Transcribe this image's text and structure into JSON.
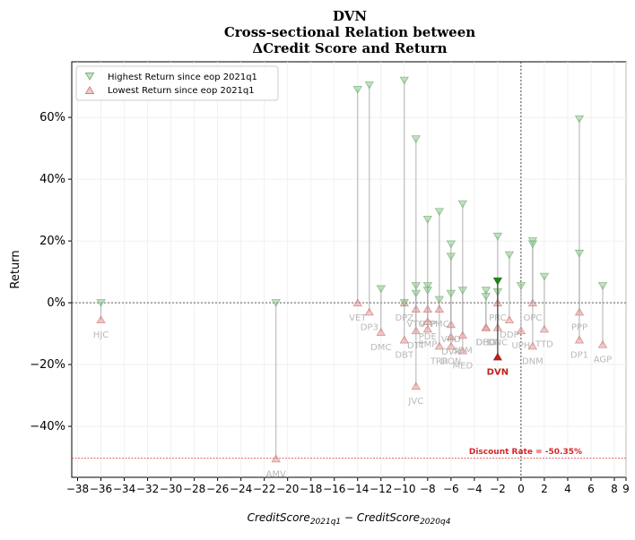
{
  "chart_data": {
    "type": "scatter",
    "title": [
      "DVN",
      "Cross-sectional Relation between",
      "ΔCredit Score and Return"
    ],
    "xlabel": "CreditScore_{2021q1} − CreditScore_{2020q4}",
    "ylabel": "Return",
    "xlim": [
      -38.5,
      9
    ],
    "ylim": [
      -0.565,
      0.78
    ],
    "x_ticks": [
      -38,
      -36,
      -34,
      -32,
      -30,
      -28,
      -26,
      -24,
      -22,
      -20,
      -18,
      -16,
      -14,
      -12,
      -10,
      -8,
      -6,
      -4,
      -2,
      0,
      2,
      4,
      6,
      8,
      9
    ],
    "x_tick_labels": [
      "−38",
      "−36",
      "−34",
      "−32",
      "−30",
      "−28",
      "−26",
      "−24",
      "−22",
      "−20",
      "−18",
      "−16",
      "−14",
      "−12",
      "−10",
      "−8",
      "−6",
      "−4",
      "−2",
      "0",
      "2",
      "4",
      "6",
      "8",
      "9"
    ],
    "y_ticks": [
      -0.4,
      -0.2,
      0,
      0.2,
      0.4,
      0.6
    ],
    "y_tick_labels": [
      "−40%",
      "−20%",
      "0%",
      "20%",
      "40%",
      "60%"
    ],
    "grid": true,
    "legend": {
      "position": "top-left",
      "entries": [
        "Highest Return since eop 2021q1",
        "Lowest Return since eop 2021q1"
      ]
    },
    "colors": {
      "high": "#8fc98f",
      "low": "#e89a9a",
      "highlight_high": "#1a8a1a",
      "highlight_low": "#c0201d",
      "label": "#b8b8b8",
      "stem": "#a8a8a8",
      "discount": "#d62728"
    },
    "discount_rate": {
      "value": -0.5035,
      "label": "Discount Rate = -50.35%"
    },
    "highlight": "DVN",
    "series": [
      {
        "label": "HJC",
        "x": -36,
        "high": 0.0,
        "low": -0.055
      },
      {
        "label": "AMV",
        "x": -21,
        "high": 0.0,
        "low": -0.505
      },
      {
        "label": "VET",
        "x": -14,
        "high": 0.69,
        "low": 0.0
      },
      {
        "label": "DP3",
        "x": -13,
        "high": 0.705,
        "low": -0.03
      },
      {
        "label": "DMC",
        "x": -12,
        "high": 0.045,
        "low": -0.095
      },
      {
        "label": "DPZ",
        "x": -10,
        "high": 0.72,
        "low": 0.0
      },
      {
        "label": "DBT",
        "x": -10,
        "high": 0.0,
        "low": -0.12
      },
      {
        "label": "VTO",
        "x": -9,
        "high": 0.03,
        "low": -0.02
      },
      {
        "label": "DTT",
        "x": -9,
        "high": 0.055,
        "low": -0.09
      },
      {
        "label": "JVC",
        "x": -9,
        "high": 0.53,
        "low": -0.27
      },
      {
        "label": "VTP",
        "x": -8,
        "high": 0.055,
        "low": -0.02
      },
      {
        "label": "PDE",
        "x": -8,
        "high": 0.04,
        "low": -0.06
      },
      {
        "label": "EMP",
        "x": -8,
        "high": 0.27,
        "low": -0.085
      },
      {
        "label": "TRR",
        "x": -7,
        "high": 0.295,
        "low": -0.14
      },
      {
        "label": "PMC",
        "x": -7,
        "high": 0.01,
        "low": -0.02
      },
      {
        "label": "VHD",
        "x": -6,
        "high": 0.19,
        "low": -0.07
      },
      {
        "label": "DVR",
        "x": -6,
        "high": 0.15,
        "low": -0.11
      },
      {
        "label": "DON",
        "x": -6,
        "high": 0.03,
        "low": -0.14
      },
      {
        "label": "MED",
        "x": -5,
        "high": 0.32,
        "low": -0.155
      },
      {
        "label": "SBM",
        "x": -5,
        "high": 0.04,
        "low": -0.105
      },
      {
        "label": "DHG",
        "x": -3,
        "high": 0.04,
        "low": -0.08
      },
      {
        "label": "DBD",
        "x": -3,
        "high": 0.02,
        "low": -0.08
      },
      {
        "label": "PRC",
        "x": -2,
        "high": 0.215,
        "low": 0.0
      },
      {
        "label": "DNC",
        "x": -2,
        "high": 0.035,
        "low": -0.08
      },
      {
        "label": "DVN",
        "x": -2,
        "high": 0.07,
        "low": -0.175
      },
      {
        "label": "DDP",
        "x": -1,
        "high": 0.155,
        "low": -0.055
      },
      {
        "label": "UPH",
        "x": 0,
        "high": 0.055,
        "low": -0.09
      },
      {
        "label": "OPC",
        "x": 1,
        "high": 0.2,
        "low": 0.0
      },
      {
        "label": "DNM",
        "x": 1,
        "high": 0.19,
        "low": -0.14
      },
      {
        "label": "TTD",
        "x": 2,
        "high": 0.085,
        "low": -0.085
      },
      {
        "label": "PPP",
        "x": 5,
        "high": 0.595,
        "low": -0.03
      },
      {
        "label": "DP1",
        "x": 5,
        "high": 0.16,
        "low": -0.12
      },
      {
        "label": "AGP",
        "x": 7,
        "high": 0.055,
        "low": -0.135
      }
    ]
  }
}
